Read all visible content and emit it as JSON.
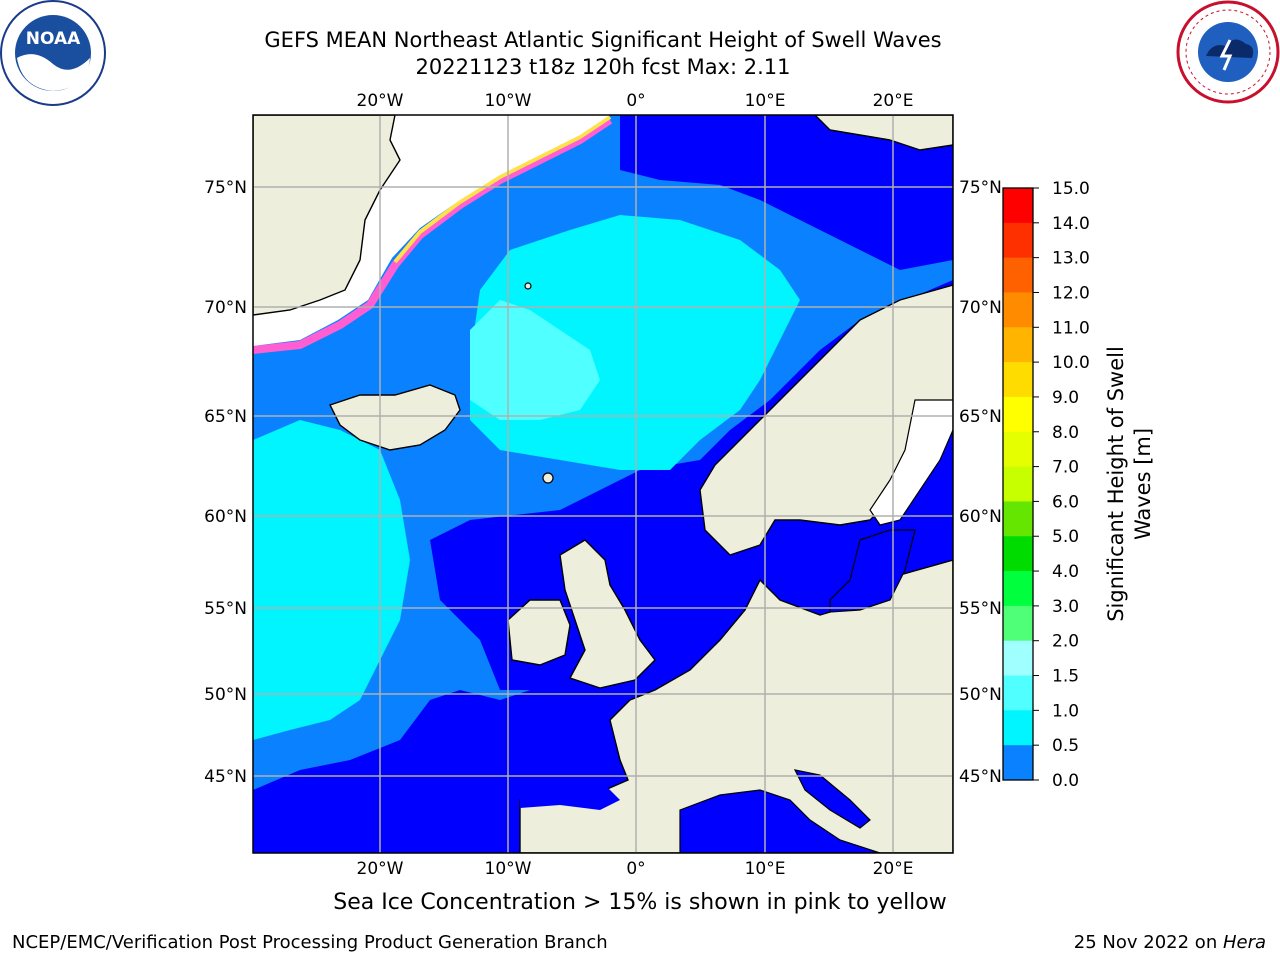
{
  "title": {
    "line1": "GEFS MEAN Northeast Atlantic Significant Height of Swell Waves",
    "line2": "20221123 t18z 120h fcst   Max: 2.11"
  },
  "logos": {
    "left": "noaa-logo",
    "right": "nws-logo",
    "left_text": "NOAA",
    "right_text": "NATIONAL WEATHER SERVICE"
  },
  "map": {
    "lon_labels": [
      "20°W",
      "10°W",
      "0°",
      "10°E",
      "20°E"
    ],
    "lat_labels_left": [
      "75°N",
      "70°N",
      "65°N",
      "60°N",
      "55°N",
      "50°N",
      "45°N"
    ],
    "lat_labels_right": [
      "75°N",
      "70°N",
      "65°N",
      "60°N",
      "55°N",
      "50°N",
      "45°N"
    ],
    "colors": {
      "land": "#eeeedc",
      "ocean_0": "#0000ff",
      "ocean_05": "#0a82ff",
      "ocean_1": "#00f5ff",
      "ocean_15": "#50ffff",
      "ice": "#ffffff",
      "grid": "#b0b0b0"
    }
  },
  "colorbar": {
    "label": "Significant Height of Swell Waves [m]",
    "label_line1": "Significant Height of Swell",
    "label_line2": "Waves [m]",
    "ticks": [
      "15.0",
      "14.0",
      "13.0",
      "12.0",
      "11.0",
      "10.0",
      "9.0",
      "8.0",
      "7.0",
      "6.0",
      "5.0",
      "4.0",
      "3.0",
      "2.0",
      "1.5",
      "1.0",
      "0.5",
      "0.0"
    ],
    "colors": [
      "#ff0000",
      "#ff3000",
      "#ff6000",
      "#ff8c00",
      "#ffb400",
      "#ffdc00",
      "#ffff00",
      "#e6ff00",
      "#c8ff00",
      "#64e600",
      "#00dc00",
      "#00ff3c",
      "#50ff78",
      "#a0ffff",
      "#50ffff",
      "#00f5ff",
      "#0a82ff",
      "#0000ff"
    ]
  },
  "caption": "Sea Ice Concentration > 15% is shown in pink to yellow",
  "footer": {
    "left": "NCEP/EMC/Verification Post Processing Product Generation Branch",
    "right_date": "25 Nov 2022 on ",
    "right_machine": "Hera"
  }
}
